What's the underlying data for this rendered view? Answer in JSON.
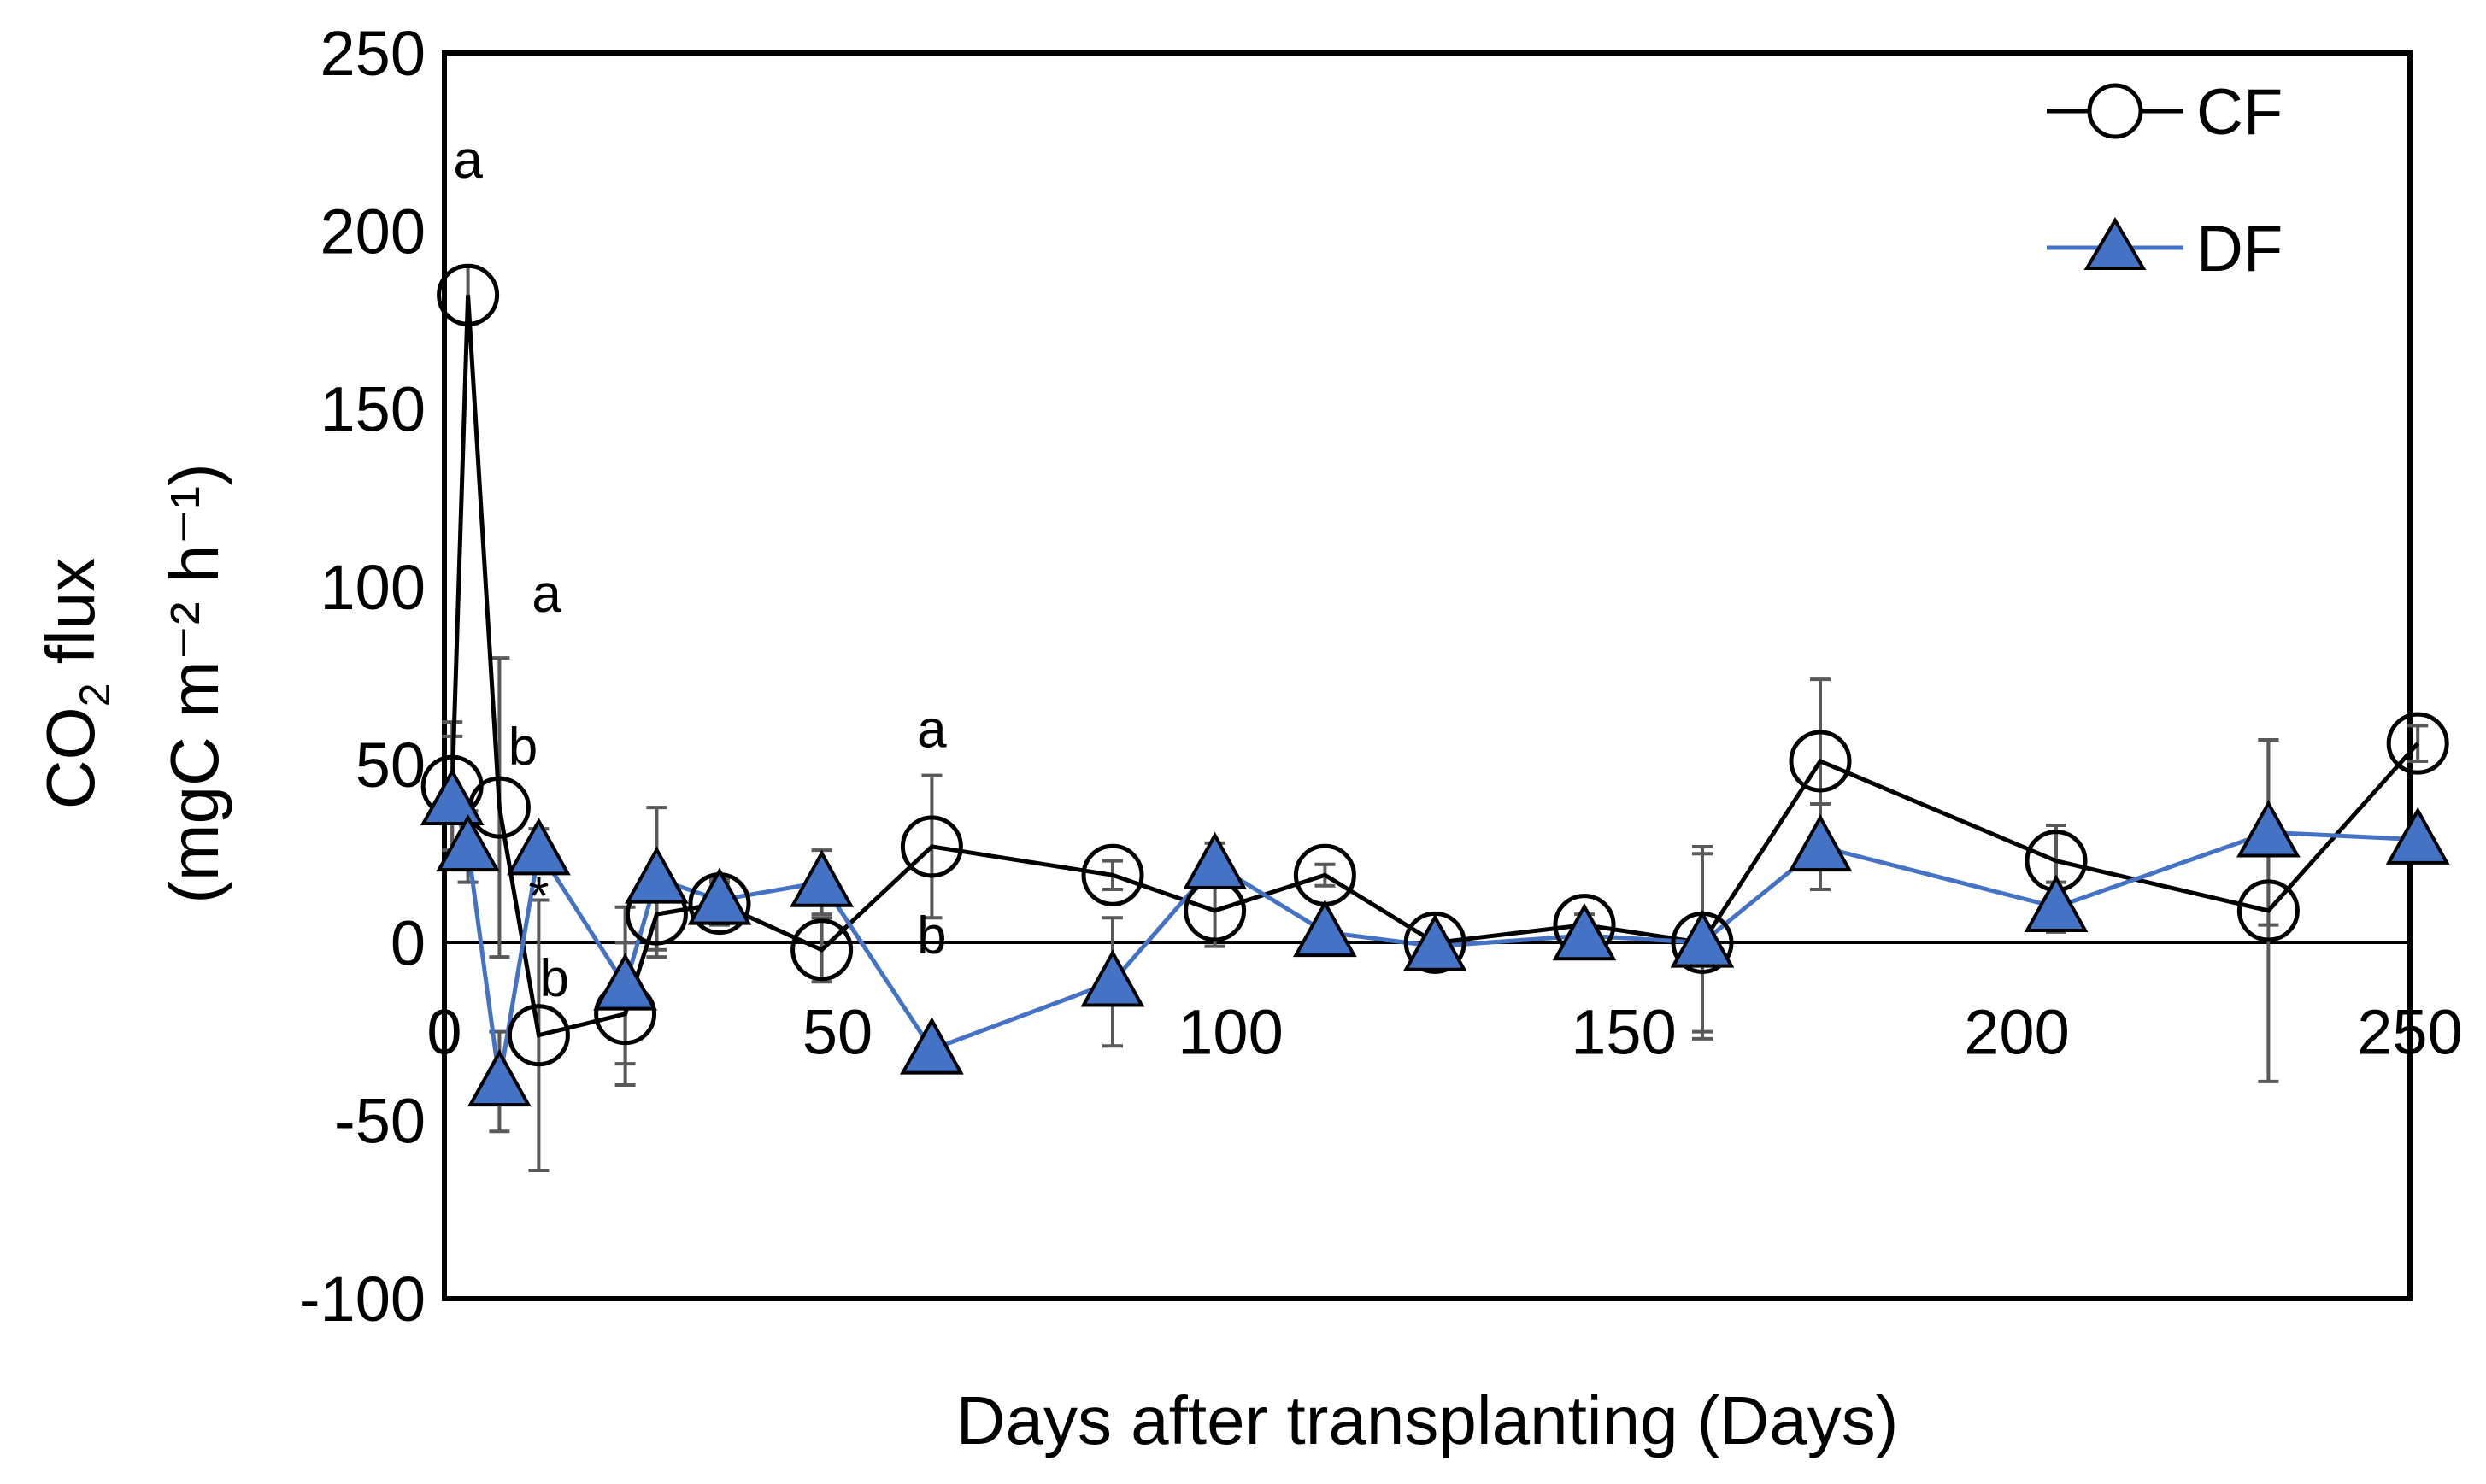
{
  "chart_data": {
    "type": "line",
    "title": "",
    "xlabel": "Days after transplanting (Days)",
    "ylabel_main": "CO",
    "ylabel_sub": "2",
    "ylabel_rest": " flux",
    "ylabel_line2": "(mgC m⁻² h⁻¹)",
    "xlim": [
      0,
      250
    ],
    "ylim": [
      -100,
      250
    ],
    "xticks": [
      "0",
      "50",
      "100",
      "150",
      "200",
      "250"
    ],
    "yticks": [
      "250",
      "200",
      "150",
      "100",
      "50",
      "0",
      "-50",
      "-100"
    ],
    "grid": false,
    "legend_position": "top-right",
    "colors": {
      "cf": "#000000",
      "df": "#4472C4",
      "df_marker": "#4472C4",
      "errorbar": "#595959"
    },
    "series": [
      {
        "name": "CF",
        "marker": "open-circle",
        "x": [
          1,
          3,
          7,
          12,
          23,
          27,
          35,
          48,
          62,
          85,
          98,
          112,
          126,
          145,
          160,
          175,
          205,
          232,
          251
        ],
        "y": [
          44,
          182,
          38,
          -26,
          -20,
          8,
          11,
          -2,
          27,
          19,
          9,
          19,
          0,
          5,
          0,
          51,
          23,
          9,
          56
        ],
        "err": [
          18,
          8,
          42,
          38,
          20,
          12,
          6,
          9,
          20,
          4,
          10,
          3,
          3,
          3,
          27,
          23,
          10,
          48,
          5
        ]
      },
      {
        "name": "DF",
        "marker": "filled-triangle",
        "x": [
          1,
          3,
          7,
          12,
          23,
          27,
          35,
          48,
          62,
          85,
          98,
          112,
          126,
          145,
          160,
          175,
          205,
          232,
          251
        ],
        "y": [
          40,
          27,
          -39,
          26,
          -12,
          18,
          12,
          17,
          -30,
          -11,
          22,
          3,
          -1,
          2,
          0,
          27,
          10,
          31,
          29
        ],
        "err": [
          18,
          10,
          14,
          6,
          22,
          20,
          6,
          9,
          3,
          18,
          6,
          3,
          3,
          3,
          25,
          12,
          7,
          26,
          3
        ]
      }
    ],
    "annotations": [
      {
        "text": "a",
        "x": 3,
        "y": 215
      },
      {
        "text": "a",
        "x": 13,
        "y": 93
      },
      {
        "text": "b",
        "x": 10,
        "y": 50
      },
      {
        "text": "*",
        "x": 12,
        "y": 8
      },
      {
        "text": "b",
        "x": 14,
        "y": -15
      },
      {
        "text": "a",
        "x": 62,
        "y": 55
      },
      {
        "text": "b",
        "x": 62,
        "y": -3
      }
    ]
  }
}
